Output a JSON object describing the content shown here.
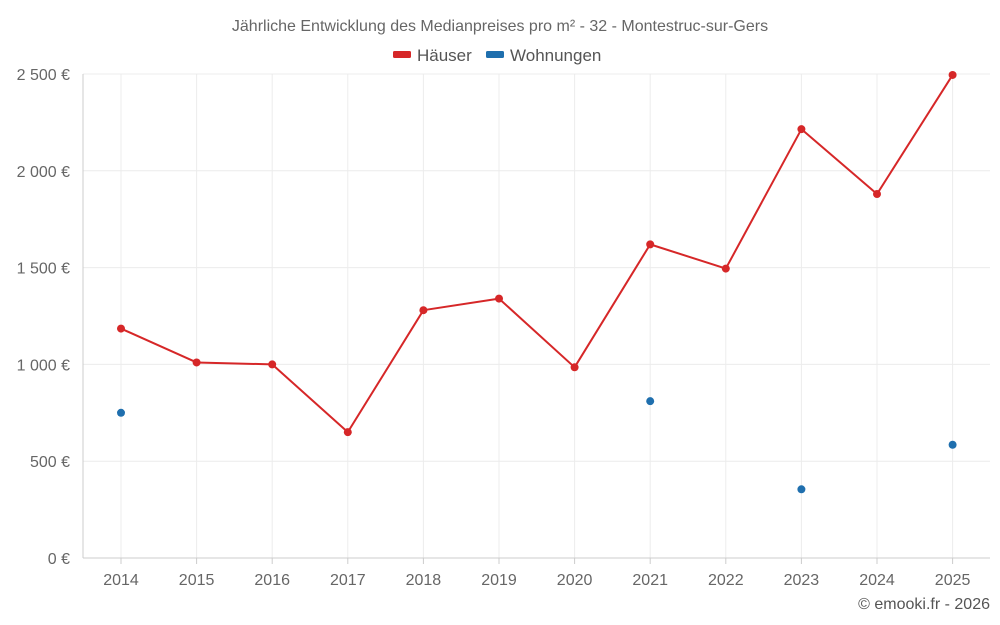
{
  "chart_data": {
    "type": "line",
    "title": "Jährliche Entwicklung des Medianpreises pro m² - 32 - Montestruc-sur-Gers",
    "categories": [
      "2014",
      "2015",
      "2016",
      "2017",
      "2018",
      "2019",
      "2020",
      "2021",
      "2022",
      "2023",
      "2024",
      "2025"
    ],
    "y_ticks": [
      "0 €",
      "500 €",
      "1 000 €",
      "1 500 €",
      "2 000 €",
      "2 500 €"
    ],
    "ylim": [
      0,
      2500
    ],
    "grid": true,
    "legend_position": "top-center",
    "series": [
      {
        "name": "Häuser",
        "color": "#d62728",
        "values": [
          1185,
          1010,
          1000,
          650,
          1280,
          1340,
          985,
          1620,
          1495,
          2215,
          1880,
          2495
        ]
      },
      {
        "name": "Wohnungen",
        "color": "#1f6fae",
        "values": [
          750,
          null,
          null,
          null,
          null,
          null,
          null,
          810,
          null,
          355,
          null,
          585
        ]
      }
    ],
    "credit": "© emooki.fr - 2026"
  }
}
